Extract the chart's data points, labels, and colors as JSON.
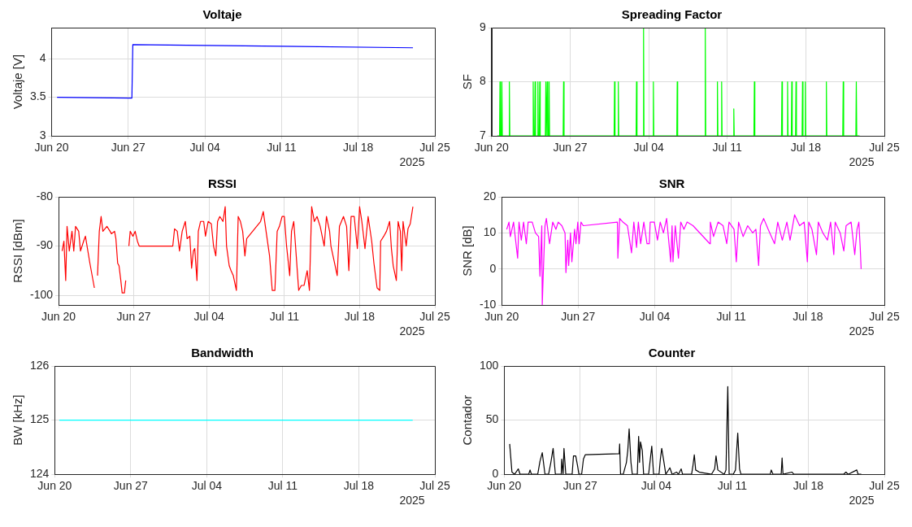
{
  "chart_data": [
    {
      "type": "line",
      "title": "Voltaje",
      "ylabel": "Voltaje [V]",
      "color": "#0000ff",
      "grid": true,
      "legend": false,
      "marker": "none",
      "line_style": "solid",
      "annotations": [
        "2025"
      ],
      "xlim": [
        "2025-06-20",
        "2025-07-25"
      ],
      "xticks": [
        {
          "value": "2025-06-20",
          "label": "Jun 20"
        },
        {
          "value": "2025-06-27",
          "label": "Jun 27"
        },
        {
          "value": "2025-07-04",
          "label": "Jul 04"
        },
        {
          "value": "2025-07-11",
          "label": "Jul 11"
        },
        {
          "value": "2025-07-18",
          "label": "Jul 18"
        },
        {
          "value": "2025-07-25",
          "label": "Jul 25"
        }
      ],
      "ylim": [
        3,
        4.4
      ],
      "yticks": [
        3,
        3.5,
        4
      ],
      "x": [
        "2025-06-20T12:00",
        "2025-06-27T08:00",
        "2025-06-27T10:00",
        "2025-07-04T00:00",
        "2025-07-11T00:00",
        "2025-07-23T00:00"
      ],
      "values": [
        3.5,
        3.49,
        4.18,
        4.17,
        4.16,
        4.14
      ]
    },
    {
      "type": "line",
      "title": "Spreading Factor",
      "ylabel": "SF",
      "color": "#00ff00",
      "grid": true,
      "legend": false,
      "marker": "none",
      "line_style": "solid",
      "annotations": [
        "2025"
      ],
      "xlim": [
        "2025-06-20",
        "2025-07-25"
      ],
      "xticks": [
        {
          "value": "2025-06-20",
          "label": "Jun 20"
        },
        {
          "value": "2025-06-27",
          "label": "Jun 27"
        },
        {
          "value": "2025-07-04",
          "label": "Jul 04"
        },
        {
          "value": "2025-07-11",
          "label": "Jul 11"
        },
        {
          "value": "2025-07-18",
          "label": "Jul 18"
        },
        {
          "value": "2025-07-25",
          "label": "Jul 25"
        }
      ],
      "ylim": [
        7,
        9
      ],
      "yticks": [
        7,
        8,
        9
      ],
      "x": [
        "2025-06-20T12:00",
        "2025-06-20T17:00",
        "2025-06-20T18:00",
        "2025-06-20T19:00",
        "2025-06-20T21:00",
        "2025-06-20T22:00",
        "2025-06-20T23:00",
        "2025-06-21T13:00",
        "2025-06-21T14:00",
        "2025-06-21T15:00",
        "2025-06-23T16:00",
        "2025-06-23T17:00",
        "2025-06-23T18:00",
        "2025-06-23T20:00",
        "2025-06-23T21:00",
        "2025-06-23T22:00",
        "2025-06-24T02:00",
        "2025-06-24T03:00",
        "2025-06-24T04:00",
        "2025-06-24T06:00",
        "2025-06-24T07:00",
        "2025-06-24T08:00",
        "2025-06-24T19:00",
        "2025-06-24T20:00",
        "2025-06-24T21:00",
        "2025-06-24T22:00",
        "2025-06-24T23:00",
        "2025-06-25T00:00",
        "2025-06-25T02:00",
        "2025-06-25T03:00",
        "2025-06-25T04:00",
        "2025-06-26T09:00",
        "2025-06-26T10:00",
        "2025-06-26T11:00",
        "2025-06-30T22:00",
        "2025-06-30T23:00",
        "2025-07-01T00:00",
        "2025-07-01T06:00",
        "2025-07-01T07:00",
        "2025-07-01T08:00",
        "2025-07-02T21:00",
        "2025-07-02T22:00",
        "2025-07-02T23:00",
        "2025-07-03T12:00",
        "2025-07-03T13:00",
        "2025-07-03T14:00",
        "2025-07-04T09:00",
        "2025-07-04T10:00",
        "2025-07-04T11:00",
        "2025-07-06T12:00",
        "2025-07-06T13:00",
        "2025-07-06T14:00",
        "2025-07-09T00:00",
        "2025-07-09T01:00",
        "2025-07-09T02:00",
        "2025-07-10T02:00",
        "2025-07-10T03:00",
        "2025-07-10T04:00",
        "2025-07-10T11:00",
        "2025-07-10T12:00",
        "2025-07-10T13:00",
        "2025-07-11T13:00",
        "2025-07-11T14:00",
        "2025-07-11T15:00",
        "2025-07-13T09:00",
        "2025-07-13T10:00",
        "2025-07-13T11:00",
        "2025-07-15T20:00",
        "2025-07-15T21:00",
        "2025-07-15T22:00",
        "2025-07-16T08:00",
        "2025-07-16T09:00",
        "2025-07-16T10:00",
        "2025-07-16T17:00",
        "2025-07-16T18:00",
        "2025-07-16T19:00",
        "2025-07-17T02:00",
        "2025-07-17T03:00",
        "2025-07-17T04:00",
        "2025-07-17T16:00",
        "2025-07-17T17:00",
        "2025-07-17T18:00",
        "2025-07-17T22:00",
        "2025-07-17T23:00",
        "2025-07-18T00:00",
        "2025-07-19T19:00",
        "2025-07-19T20:00",
        "2025-07-19T21:00",
        "2025-07-21T07:00",
        "2025-07-21T08:00",
        "2025-07-21T09:00",
        "2025-07-22T11:00",
        "2025-07-22T12:00",
        "2025-07-22T13:00",
        "2025-07-22T19:00"
      ],
      "values": [
        7,
        7,
        8,
        7,
        7,
        8,
        7,
        7,
        8,
        7,
        7,
        8,
        7,
        7,
        8,
        7,
        7,
        8,
        7,
        7,
        8,
        7,
        7,
        8,
        7,
        7,
        8,
        7,
        7,
        8,
        7,
        7,
        8,
        7,
        7,
        8,
        7,
        7,
        8,
        7,
        7,
        8,
        7,
        7,
        9,
        7,
        7,
        8,
        7,
        7,
        8,
        7,
        7,
        9,
        7,
        7,
        8,
        7,
        7,
        8,
        7,
        7,
        7.5,
        7,
        7,
        8,
        7,
        7,
        8,
        7,
        7,
        8,
        7,
        7,
        8,
        7,
        7,
        8,
        7,
        7,
        8,
        7,
        7,
        8,
        7,
        7,
        8,
        7,
        7,
        8,
        7,
        7,
        8,
        7,
        7
      ]
    },
    {
      "type": "line",
      "title": "RSSI",
      "ylabel": "RSSI [dBm]",
      "color": "#ff0000",
      "grid": true,
      "legend": false,
      "marker": "none",
      "line_style": "solid",
      "annotations": [
        "2025"
      ],
      "xlim": [
        "2025-06-20",
        "2025-07-25"
      ],
      "xticks": [
        {
          "value": "2025-06-20",
          "label": "Jun 20"
        },
        {
          "value": "2025-06-27",
          "label": "Jun 27"
        },
        {
          "value": "2025-07-04",
          "label": "Jul 04"
        },
        {
          "value": "2025-07-11",
          "label": "Jul 11"
        },
        {
          "value": "2025-07-18",
          "label": "Jul 18"
        },
        {
          "value": "2025-07-25",
          "label": "Jul 25"
        }
      ],
      "ylim": [
        -102,
        -80
      ],
      "yticks": [
        -100,
        -90,
        -80
      ],
      "x": [
        "2025-06-20T08:00",
        "2025-06-20T12:00",
        "2025-06-20T16:00",
        "2025-06-20T19:00",
        "2025-06-21T00:00",
        "2025-06-21T06:00",
        "2025-06-21T10:00",
        "2025-06-21T14:00",
        "2025-06-21T21:00",
        "2025-06-22T01:00",
        "2025-06-22T08:00",
        "2025-06-22T12:00",
        "2025-06-22T22:00",
        "2025-06-23T08:00",
        "2025-06-23T12:00",
        "2025-06-23T15:00",
        "2025-06-23T19:00",
        "2025-06-23T23:00",
        "2025-06-24T03:00",
        "2025-06-24T12:00",
        "2025-06-24T19:00",
        "2025-06-24T22:00",
        "2025-06-25T05:00",
        "2025-06-25T08:00",
        "2025-06-25T12:00",
        "2025-06-25T15:00",
        "2025-06-25T19:00",
        "2025-06-25T22:00",
        "2025-06-26T03:00",
        "2025-06-26T06:00",
        "2025-06-26T10:00",
        "2025-06-26T13:00",
        "2025-06-26T16:00",
        "2025-06-26T22:00",
        "2025-06-27T03:00",
        "2025-06-27T08:00",
        "2025-06-27T12:00",
        "2025-06-30T15:00",
        "2025-06-30T19:00",
        "2025-07-01T01:00",
        "2025-07-01T06:00",
        "2025-07-01T12:00",
        "2025-07-01T19:00",
        "2025-07-01T23:00",
        "2025-07-02T05:00",
        "2025-07-02T09:00",
        "2025-07-02T13:00",
        "2025-07-02T16:00",
        "2025-07-02T21:00",
        "2025-07-03T00:00",
        "2025-07-03T05:00",
        "2025-07-03T12:00",
        "2025-07-03T16:00",
        "2025-07-03T22:00",
        "2025-07-04T05:00",
        "2025-07-04T10:00",
        "2025-07-04T15:00",
        "2025-07-04T19:00",
        "2025-07-05T00:00",
        "2025-07-05T07:00",
        "2025-07-05T12:00",
        "2025-07-05T15:00",
        "2025-07-05T21:00",
        "2025-07-06T01:00",
        "2025-07-06T06:00",
        "2025-07-06T13:00",
        "2025-07-06T17:00",
        "2025-07-06T22:00",
        "2025-07-07T03:00",
        "2025-07-07T08:00",
        "2025-07-07T12:00",
        "2025-07-08T19:00",
        "2025-07-09T01:00",
        "2025-07-09T08:00",
        "2025-07-09T15:00",
        "2025-07-09T21:00",
        "2025-07-10T03:00",
        "2025-07-10T08:00",
        "2025-07-10T13:00",
        "2025-07-10T19:00",
        "2025-07-11T00:00",
        "2025-07-11T05:00",
        "2025-07-11T12:00",
        "2025-07-11T16:00",
        "2025-07-11T21:00",
        "2025-07-12T01:00",
        "2025-07-12T08:00",
        "2025-07-12T14:00",
        "2025-07-12T20:00",
        "2025-07-13T03:00",
        "2025-07-13T08:00",
        "2025-07-13T13:00",
        "2025-07-13T19:00",
        "2025-07-14T01:00",
        "2025-07-14T08:00",
        "2025-07-14T17:00",
        "2025-07-14T22:00",
        "2025-07-15T05:00",
        "2025-07-15T08:00",
        "2025-07-15T15:00",
        "2025-07-15T22:00",
        "2025-07-16T03:00",
        "2025-07-16T12:00",
        "2025-07-16T19:00",
        "2025-07-17T00:00",
        "2025-07-17T05:00",
        "2025-07-17T12:00",
        "2025-07-17T19:00",
        "2025-07-18T00:00",
        "2025-07-18T05:00",
        "2025-07-18T12:00",
        "2025-07-18T19:00",
        "2025-07-19T03:00",
        "2025-07-19T08:00",
        "2025-07-19T15:00",
        "2025-07-19T21:00",
        "2025-07-19T23:00",
        "2025-07-20T06:00",
        "2025-07-20T12:00",
        "2025-07-20T19:00",
        "2025-07-20T23:00",
        "2025-07-21T03:00",
        "2025-07-21T10:00",
        "2025-07-21T14:00",
        "2025-07-21T19:00",
        "2025-07-21T22:00",
        "2025-07-22T01:00",
        "2025-07-22T08:00",
        "2025-07-22T12:00",
        "2025-07-22T17:00",
        "2025-07-22T23:00"
      ],
      "values": [
        -91,
        -89,
        -97,
        -86,
        -91,
        -87,
        -91,
        -86,
        -87,
        -91,
        -89,
        -88,
        -93.5,
        -98.5,
        null,
        -96,
        -87,
        -84,
        -87,
        -86,
        -87,
        -87.5,
        -87,
        -88.5,
        -93.5,
        -94,
        -97,
        -99.5,
        -99.5,
        -97,
        null,
        -90,
        -87,
        -88,
        -87,
        -89,
        -90,
        -90,
        -86.5,
        -87,
        -91,
        -87,
        -85,
        -88.5,
        -88,
        -94.5,
        -91,
        -90.5,
        -97,
        -87,
        -85,
        -85,
        -88,
        -85,
        -85.5,
        -90,
        -92,
        -85,
        -84,
        -85,
        -82,
        -90,
        -94,
        -95,
        -96,
        -99,
        -84,
        -85,
        -87,
        -92,
        -88.5,
        -85,
        -83,
        -87.5,
        -92,
        -99,
        -99,
        -87,
        -86,
        -84,
        -84,
        -90,
        -96,
        -87,
        -85,
        -90,
        -99,
        -98,
        -98,
        -95,
        -99,
        -82,
        -85,
        -84,
        -86,
        -90,
        -84,
        -87,
        -90,
        -93,
        -96,
        -86,
        -84,
        -86,
        -95,
        -84,
        -84,
        -90.5,
        -82,
        -85,
        -90.5,
        -84,
        -89,
        -93.5,
        -98.5,
        -99,
        -89,
        -88,
        -87,
        -85,
        -90.5,
        -94,
        -97,
        -85,
        -87,
        -95,
        -85,
        -90,
        -86.5,
        -85.5,
        -82
      ]
    },
    {
      "type": "line",
      "title": "SNR",
      "ylabel": "SNR [dB]",
      "color": "#ff00ff",
      "grid": true,
      "legend": false,
      "marker": "none",
      "line_style": "solid",
      "annotations": [
        "2025"
      ],
      "xlim": [
        "2025-06-20",
        "2025-07-25"
      ],
      "xticks": [
        {
          "value": "2025-06-20",
          "label": "Jun 20"
        },
        {
          "value": "2025-06-27",
          "label": "Jun 27"
        },
        {
          "value": "2025-07-04",
          "label": "Jul 04"
        },
        {
          "value": "2025-07-11",
          "label": "Jul 11"
        },
        {
          "value": "2025-07-18",
          "label": "Jul 18"
        },
        {
          "value": "2025-07-25",
          "label": "Jul 25"
        }
      ],
      "ylim": [
        -10,
        20
      ],
      "yticks": [
        -10,
        0,
        10,
        20
      ],
      "x": [
        "2025-06-20T11:00",
        "2025-06-20T16:00",
        "2025-06-20T19:00",
        "2025-06-21T02:00",
        "2025-06-21T11:00",
        "2025-06-21T14:00",
        "2025-06-21T19:00",
        "2025-06-22T00:00",
        "2025-06-22T06:00",
        "2025-06-22T10:00",
        "2025-06-22T19:00",
        "2025-06-23T02:00",
        "2025-06-23T09:00",
        "2025-06-23T12:00",
        "2025-06-23T16:00",
        "2025-06-23T17:00",
        "2025-06-23T19:00",
        "2025-06-23T23:00",
        "2025-06-24T02:00",
        "2025-06-24T09:00",
        "2025-06-24T16:00",
        "2025-06-24T23:00",
        "2025-06-25T04:00",
        "2025-06-25T12:00",
        "2025-06-25T19:00",
        "2025-06-25T21:00",
        "2025-06-26T01:00",
        "2025-06-26T03:00",
        "2025-06-26T07:00",
        "2025-06-26T10:00",
        "2025-06-26T16:00",
        "2025-06-26T19:00",
        "2025-06-26T23:00",
        "2025-06-27T02:00",
        "2025-06-27T06:00",
        "2025-06-27T11:00",
        "2025-06-30T14:00",
        "2025-06-30T15:00",
        "2025-06-30T19:00",
        "2025-07-01T02:00",
        "2025-07-01T12:00",
        "2025-07-01T21:00",
        "2025-07-02T02:00",
        "2025-07-02T08:00",
        "2025-07-02T12:00",
        "2025-07-02T17:00",
        "2025-07-03T00:00",
        "2025-07-03T07:00",
        "2025-07-03T12:00",
        "2025-07-03T14:00",
        "2025-07-03T23:00",
        "2025-07-04T06:00",
        "2025-07-04T12:00",
        "2025-07-04T19:00",
        "2025-07-05T02:00",
        "2025-07-05T11:00",
        "2025-07-05T14:00",
        "2025-07-05T16:00",
        "2025-07-05T21:00",
        "2025-07-06T04:00",
        "2025-07-06T09:00",
        "2025-07-06T16:00",
        "2025-07-06T23:00",
        "2025-07-07T12:00",
        "2025-07-09T01:00",
        "2025-07-09T02:00",
        "2025-07-09T09:00",
        "2025-07-09T19:00",
        "2025-07-10T06:00",
        "2025-07-10T14:00",
        "2025-07-10T19:00",
        "2025-07-11T06:00",
        "2025-07-11T11:00",
        "2025-07-11T16:00",
        "2025-07-12T02:00",
        "2025-07-12T12:00",
        "2025-07-12T23:00",
        "2025-07-13T06:00",
        "2025-07-13T12:00",
        "2025-07-13T16:00",
        "2025-07-13T23:00",
        "2025-07-14T09:00",
        "2025-07-14T23:00",
        "2025-07-15T06:00",
        "2025-07-15T16:00",
        "2025-07-16T02:00",
        "2025-07-16T09:00",
        "2025-07-16T19:00",
        "2025-07-17T06:00",
        "2025-07-17T16:00",
        "2025-07-17T23:00",
        "2025-07-18T02:00",
        "2025-07-18T09:00",
        "2025-07-18T19:00",
        "2025-07-18T23:00",
        "2025-07-19T09:00",
        "2025-07-19T19:00",
        "2025-07-20T02:00",
        "2025-07-20T09:00",
        "2025-07-20T12:00",
        "2025-07-20T23:00",
        "2025-07-21T07:00",
        "2025-07-21T12:00",
        "2025-07-21T23:00",
        "2025-07-22T07:00",
        "2025-07-22T12:00",
        "2025-07-22T16:00",
        "2025-07-22T19:00",
        "2025-07-22T21:00"
      ],
      "values": [
        11,
        13,
        9,
        13,
        3,
        13,
        8,
        13,
        7,
        13,
        13,
        10,
        9,
        -2,
        12,
        -10,
        -2,
        12,
        14,
        7,
        13,
        11,
        13,
        12,
        10,
        -1,
        8,
        1,
        10,
        2,
        11,
        7,
        13,
        7,
        13,
        12,
        13,
        3,
        14,
        13,
        12,
        4.5,
        13,
        6,
        13,
        7,
        13,
        7,
        7,
        13,
        13,
        8,
        13,
        10,
        14,
        2,
        12,
        2,
        12,
        3,
        13,
        11,
        13,
        12,
        7,
        13,
        9,
        13,
        12,
        7,
        13,
        11,
        2,
        13,
        9,
        12,
        10,
        11,
        1,
        12,
        14,
        11,
        7,
        13,
        8,
        13,
        8,
        15,
        12,
        13,
        2,
        13,
        11,
        4,
        13,
        10,
        8,
        13,
        4,
        13,
        10,
        5,
        12,
        13,
        4,
        11,
        13,
        6,
        0
      ]
    },
    {
      "type": "line",
      "title": "Bandwidth",
      "ylabel": "BW [kHz]",
      "color": "#00ffff",
      "grid": true,
      "legend": false,
      "marker": "none",
      "line_style": "solid",
      "annotations": [
        "2025"
      ],
      "xlim": [
        "2025-06-20",
        "2025-07-25"
      ],
      "xticks": [
        {
          "value": "2025-06-20",
          "label": "Jun 20"
        },
        {
          "value": "2025-06-27",
          "label": "Jun 27"
        },
        {
          "value": "2025-07-04",
          "label": "Jul 04"
        },
        {
          "value": "2025-07-11",
          "label": "Jul 11"
        },
        {
          "value": "2025-07-18",
          "label": "Jul 18"
        },
        {
          "value": "2025-07-25",
          "label": "Jul 25"
        }
      ],
      "ylim": [
        124,
        126
      ],
      "yticks": [
        124,
        125,
        126
      ],
      "x": [
        "2025-06-20T10:00",
        "2025-07-22T23:00"
      ],
      "values": [
        125,
        125
      ]
    },
    {
      "type": "line",
      "title": "Counter",
      "ylabel": "Contador",
      "color": "#000000",
      "grid": true,
      "legend": false,
      "marker": "none",
      "line_style": "solid",
      "annotations": [
        "2025"
      ],
      "xlim": [
        "2025-06-20",
        "2025-07-25"
      ],
      "xticks": [
        {
          "value": "2025-06-20",
          "label": "Jun 20"
        },
        {
          "value": "2025-06-27",
          "label": "Jun 27"
        },
        {
          "value": "2025-07-04",
          "label": "Jul 04"
        },
        {
          "value": "2025-07-11",
          "label": "Jul 11"
        },
        {
          "value": "2025-07-18",
          "label": "Jul 18"
        },
        {
          "value": "2025-07-25",
          "label": "Jul 25"
        }
      ],
      "ylim": [
        0,
        100
      ],
      "yticks": [
        0,
        50,
        100
      ],
      "x": [
        "2025-06-20T12:00",
        "2025-06-20T17:00",
        "2025-06-20T23:00",
        "2025-06-21T07:00",
        "2025-06-21T11:00",
        "2025-06-22T06:00",
        "2025-06-22T09:00",
        "2025-06-22T12:00",
        "2025-06-23T02:00",
        "2025-06-23T07:00",
        "2025-06-23T12:00",
        "2025-06-23T18:00",
        "2025-06-24T02:00",
        "2025-06-24T07:00",
        "2025-06-24T12:00",
        "2025-06-24T17:00",
        "2025-06-25T06:00",
        "2025-06-25T07:00",
        "2025-06-25T10:00",
        "2025-06-25T12:00",
        "2025-06-25T16:00",
        "2025-06-26T06:00",
        "2025-06-26T09:00",
        "2025-06-26T14:00",
        "2025-06-26T18:00",
        "2025-06-26T21:00",
        "2025-06-27T03:00",
        "2025-06-27T07:00",
        "2025-06-27T11:00",
        "2025-06-30T14:00",
        "2025-06-30T15:00",
        "2025-06-30T17:00",
        "2025-06-30T23:00",
        "2025-07-01T06:00",
        "2025-07-01T09:00",
        "2025-07-01T12:00",
        "2025-07-01T16:00",
        "2025-07-01T19:00",
        "2025-07-02T06:00",
        "2025-07-02T09:00",
        "2025-07-02T11:00",
        "2025-07-02T13:00",
        "2025-07-02T17:00",
        "2025-07-02T20:00",
        "2025-07-03T07:00",
        "2025-07-03T10:00",
        "2025-07-03T14:00",
        "2025-07-03T18:00",
        "2025-07-04T06:00",
        "2025-07-04T09:00",
        "2025-07-04T12:00",
        "2025-07-04T17:00",
        "2025-07-04T21:00",
        "2025-07-05T06:00",
        "2025-07-05T11:00",
        "2025-07-05T21:00",
        "2025-07-06T01:00",
        "2025-07-06T07:00",
        "2025-07-06T10:00",
        "2025-07-07T06:00",
        "2025-07-07T09:00",
        "2025-07-07T12:00",
        "2025-07-07T15:00",
        "2025-07-07T23:00",
        "2025-07-09T02:00",
        "2025-07-09T09:00",
        "2025-07-09T12:00",
        "2025-07-09T16:00",
        "2025-07-10T06:00",
        "2025-07-10T10:00",
        "2025-07-10T14:00",
        "2025-07-10T17:00",
        "2025-07-11T02:00",
        "2025-07-11T07:00",
        "2025-07-11T12:00",
        "2025-07-11T16:00",
        "2025-07-11T19:00",
        "2025-07-14T12:00",
        "2025-07-14T14:00",
        "2025-07-14T18:00",
        "2025-07-15T12:00",
        "2025-07-15T14:00",
        "2025-07-15T16:00",
        "2025-07-16T12:00",
        "2025-07-16T16:00",
        "2025-07-21T06:00",
        "2025-07-21T11:00",
        "2025-07-21T16:00",
        "2025-07-22T11:00",
        "2025-07-22T14:00",
        "2025-07-22T21:00"
      ],
      "values": [
        28,
        2,
        0,
        5,
        0,
        0,
        4,
        0,
        0,
        12,
        20,
        0,
        0,
        11,
        24,
        0,
        0,
        14,
        0,
        24,
        0,
        0,
        17,
        17,
        8,
        0,
        0,
        14,
        18,
        19,
        28,
        0,
        0,
        11,
        22,
        42,
        11,
        0,
        0,
        35,
        11,
        30,
        22,
        0,
        0,
        11,
        26,
        0,
        0,
        14,
        24,
        11,
        0,
        6,
        0,
        2,
        0,
        5,
        0,
        0,
        8,
        18,
        4,
        2,
        0,
        5,
        17,
        4,
        0,
        4,
        81,
        0,
        0,
        4,
        38,
        5,
        0,
        0,
        4,
        0,
        0,
        15,
        0,
        2,
        0,
        0,
        2,
        0,
        4,
        0,
        0
      ]
    }
  ]
}
